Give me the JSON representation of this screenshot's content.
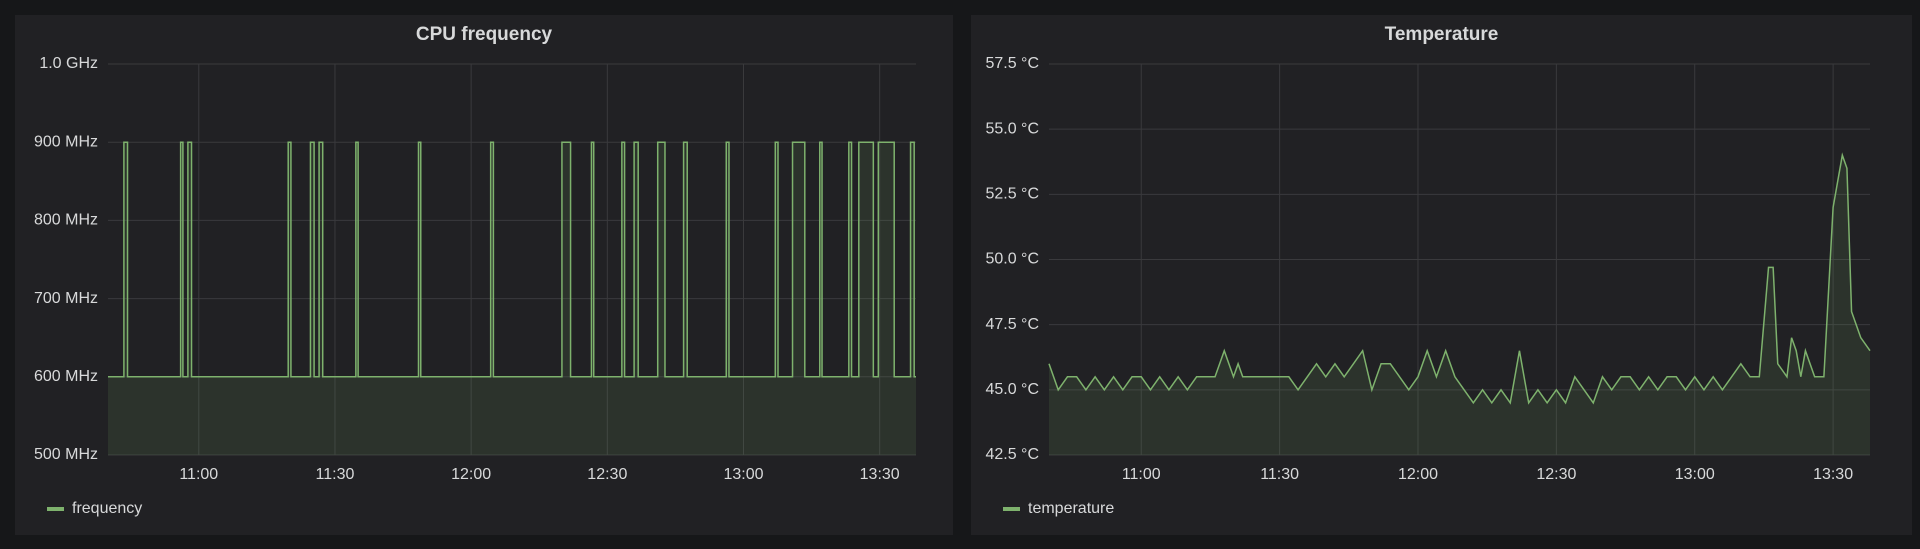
{
  "chart_data": [
    {
      "type": "line",
      "title": "CPU frequency",
      "x": [
        640,
        643.5,
        643.5,
        644.3,
        644.3,
        656,
        656,
        656.5,
        656.5,
        657.6,
        657.6,
        658.4,
        658.4,
        679.7,
        679.7,
        680.3,
        680.3,
        684.6,
        684.6,
        685.4,
        685.4,
        686.5,
        686.5,
        687.3,
        687.3,
        694.6,
        694.6,
        695.1,
        695.1,
        708.4,
        708.4,
        708.9,
        708.9,
        724.3,
        724.3,
        724.9,
        724.9,
        740,
        740,
        741.9,
        741.9,
        746.5,
        746.5,
        747,
        747,
        753.2,
        753.2,
        753.8,
        753.8,
        755.9,
        755.9,
        756.8,
        756.8,
        761.1,
        761.1,
        762.7,
        762.7,
        766.8,
        766.8,
        767.6,
        767.6,
        776.2,
        776.2,
        776.8,
        776.8,
        787,
        787,
        787.6,
        787.6,
        790.8,
        790.8,
        793.5,
        793.5,
        796.8,
        796.8,
        797.3,
        797.3,
        803.2,
        803.2,
        803.8,
        803.8,
        805.4,
        805.4,
        808.6,
        808.6,
        809.7,
        809.7,
        813.2,
        813.2,
        816.8,
        816.8,
        817.6,
        817.6,
        818
      ],
      "series": [
        {
          "name": "frequency",
          "color": "#7eb26d",
          "values": [
            600,
            600,
            900,
            900,
            600,
            600,
            900,
            900,
            600,
            600,
            900,
            900,
            600,
            600,
            900,
            900,
            600,
            600,
            900,
            900,
            600,
            600,
            900,
            900,
            600,
            600,
            900,
            900,
            600,
            600,
            900,
            900,
            600,
            600,
            900,
            900,
            600,
            600,
            900,
            900,
            600,
            600,
            900,
            900,
            600,
            600,
            900,
            900,
            600,
            600,
            900,
            900,
            600,
            600,
            900,
            900,
            600,
            600,
            900,
            900,
            600,
            600,
            900,
            900,
            600,
            600,
            900,
            900,
            600,
            600,
            900,
            900,
            600,
            600,
            900,
            900,
            600,
            600,
            900,
            900,
            600,
            600,
            900,
            900,
            600,
            600,
            900,
            900,
            600,
            600,
            900,
            900,
            600,
            600
          ]
        }
      ],
      "xlim": [
        640,
        818
      ],
      "xticks": [
        {
          "value": 660,
          "label": "11:00"
        },
        {
          "value": 690,
          "label": "11:30"
        },
        {
          "value": 720,
          "label": "12:00"
        },
        {
          "value": 750,
          "label": "12:30"
        },
        {
          "value": 780,
          "label": "13:00"
        },
        {
          "value": 810,
          "label": "13:30"
        }
      ],
      "ylim": [
        500,
        1000
      ],
      "yticks": [
        {
          "value": 500,
          "label": "500 MHz"
        },
        {
          "value": 600,
          "label": "600 MHz"
        },
        {
          "value": 700,
          "label": "700 MHz"
        },
        {
          "value": 800,
          "label": "800 MHz"
        },
        {
          "value": 900,
          "label": "900 MHz"
        },
        {
          "value": 1000,
          "label": "1.0 GHz"
        }
      ],
      "grid": true,
      "fill": true
    },
    {
      "type": "line",
      "title": "Temperature",
      "x": [
        640,
        642,
        644,
        646,
        648,
        650,
        652,
        654,
        656,
        658,
        660,
        662,
        664,
        666,
        668,
        670,
        672,
        674,
        676,
        678,
        680,
        681,
        682,
        684,
        686,
        688,
        690,
        692,
        694,
        696,
        698,
        700,
        702,
        704,
        706,
        708,
        710,
        712,
        714,
        716,
        718,
        720,
        722,
        724,
        726,
        728,
        730,
        732,
        734,
        736,
        738,
        740,
        742,
        744,
        746,
        748,
        750,
        752,
        754,
        756,
        758,
        760,
        762,
        764,
        766,
        768,
        770,
        772,
        774,
        776,
        778,
        780,
        782,
        784,
        786,
        788,
        790,
        792,
        794,
        796,
        797,
        798,
        800,
        801,
        802,
        803,
        804,
        806,
        808,
        810,
        811,
        812,
        813,
        814,
        815,
        816,
        818
      ],
      "series": [
        {
          "name": "temperature",
          "color": "#7eb26d",
          "values": [
            46,
            45,
            45.5,
            45.5,
            45,
            45.5,
            45,
            45.5,
            45,
            45.5,
            45.5,
            45,
            45.5,
            45,
            45.5,
            45,
            45.5,
            45.5,
            45.5,
            46.5,
            45.5,
            46,
            45.5,
            45.5,
            45.5,
            45.5,
            45.5,
            45.5,
            45,
            45.5,
            46,
            45.5,
            46,
            45.5,
            46,
            46.5,
            45,
            46,
            46,
            45.5,
            45,
            45.5,
            46.5,
            45.5,
            46.5,
            45.5,
            45,
            44.5,
            45,
            44.5,
            45,
            44.5,
            46.5,
            44.5,
            45,
            44.5,
            45,
            44.5,
            45.5,
            45,
            44.5,
            45.5,
            45,
            45.5,
            45.5,
            45,
            45.5,
            45,
            45.5,
            45.5,
            45,
            45.5,
            45,
            45.5,
            45,
            45.5,
            46,
            45.5,
            45.5,
            49.7,
            49.7,
            46,
            45.5,
            47,
            46.5,
            45.5,
            46.5,
            45.5,
            45.5,
            52,
            53,
            54,
            53.5,
            48,
            47.5,
            47,
            46.5
          ]
        }
      ],
      "xlim": [
        640,
        818
      ],
      "xticks": [
        {
          "value": 660,
          "label": "11:00"
        },
        {
          "value": 690,
          "label": "11:30"
        },
        {
          "value": 720,
          "label": "12:00"
        },
        {
          "value": 750,
          "label": "12:30"
        },
        {
          "value": 780,
          "label": "13:00"
        },
        {
          "value": 810,
          "label": "13:30"
        }
      ],
      "ylim": [
        42.5,
        57.5
      ],
      "yticks": [
        {
          "value": 42.5,
          "label": "42.5 °C"
        },
        {
          "value": 45,
          "label": "45.0 °C"
        },
        {
          "value": 47.5,
          "label": "47.5 °C"
        },
        {
          "value": 50,
          "label": "50.0 °C"
        },
        {
          "value": 52.5,
          "label": "52.5 °C"
        },
        {
          "value": 55,
          "label": "55.0 °C"
        },
        {
          "value": 57.5,
          "label": "57.5 °C"
        }
      ],
      "grid": true,
      "fill": true
    }
  ]
}
